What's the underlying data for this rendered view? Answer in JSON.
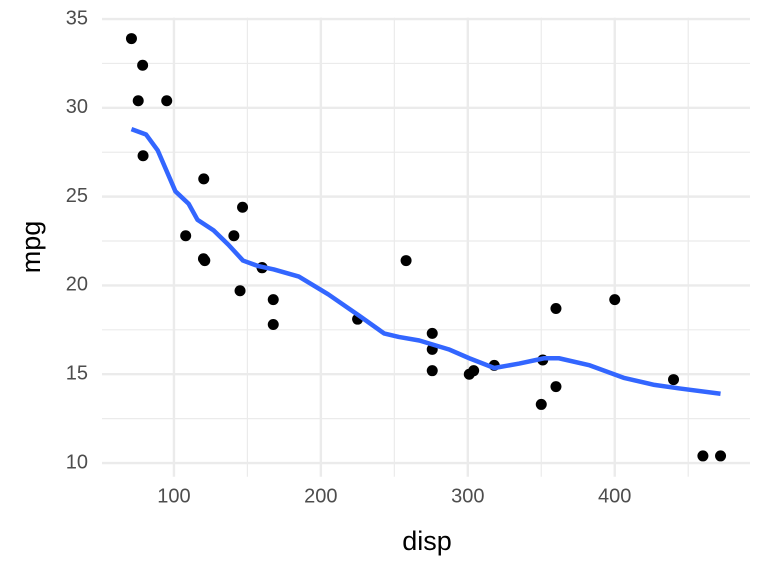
{
  "chart_data": {
    "type": "scatter",
    "xlabel": "disp",
    "ylabel": "mpg",
    "xlim": [
      51.05,
      492.05
    ],
    "ylim": [
      9.225,
      35.075
    ],
    "xticks": [
      100,
      200,
      300,
      400
    ],
    "yticks": [
      10,
      15,
      20,
      25,
      30,
      35
    ],
    "grid": true,
    "minor_grid": true,
    "series": [
      {
        "type": "scatter",
        "color": "#000000",
        "x": [
          160,
          160,
          108,
          258,
          360,
          225,
          360,
          146.7,
          140.8,
          167.6,
          167.6,
          275.8,
          275.8,
          275.8,
          472,
          460,
          440,
          78.7,
          75.7,
          71.1,
          120.1,
          318,
          304,
          350,
          400,
          79,
          120.3,
          95.1,
          351,
          145,
          301,
          121
        ],
        "values": [
          21.0,
          21.0,
          22.8,
          21.4,
          18.7,
          18.1,
          14.3,
          24.4,
          22.8,
          19.2,
          17.8,
          16.4,
          17.3,
          15.2,
          10.4,
          10.4,
          14.7,
          32.4,
          30.4,
          33.9,
          21.5,
          15.5,
          15.2,
          13.3,
          19.2,
          27.3,
          26.0,
          30.4,
          15.8,
          19.7,
          15.0,
          21.4
        ]
      },
      {
        "type": "line",
        "color": "#3366FF",
        "x": [
          71.1,
          81,
          89,
          101,
          110,
          116,
          127,
          137,
          147,
          157,
          168,
          185,
          205,
          226,
          243,
          253,
          267,
          287,
          301,
          318,
          335,
          352,
          362,
          383,
          406,
          427,
          444,
          472
        ],
        "values": [
          28.8,
          28.5,
          27.6,
          25.3,
          24.6,
          23.7,
          23.1,
          22.3,
          21.4,
          21.1,
          20.9,
          20.5,
          19.5,
          18.3,
          17.3,
          17.1,
          16.9,
          16.4,
          15.9,
          15.35,
          15.6,
          15.9,
          15.9,
          15.5,
          14.8,
          14.4,
          14.2,
          13.9
        ]
      }
    ]
  }
}
